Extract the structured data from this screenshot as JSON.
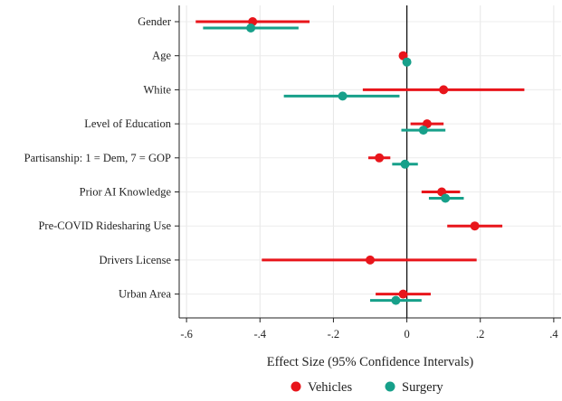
{
  "chart_data": {
    "type": "scatter",
    "title": "",
    "xlabel": "Effect Size (95% Confidence Intervals)",
    "ylabel": "",
    "xlim": [
      -0.62,
      0.42
    ],
    "xticks": [
      -0.6,
      -0.4,
      -0.2,
      0,
      0.2,
      0.4
    ],
    "xtick_labels": [
      "-.6",
      "-.4",
      "-.2",
      "0",
      ".2",
      ".4"
    ],
    "grid": true,
    "reference_line_x": 0,
    "legend_position": "bottom",
    "categories": [
      "Gender",
      "Age",
      "White",
      "Level of Education",
      "Partisanship: 1 = Dem, 7 = GOP",
      "Prior AI Knowledge",
      "Pre-COVID Ridesharing Use",
      "Drivers License",
      "Urban Area"
    ],
    "series": [
      {
        "name": "Vehicles",
        "color": "#e8151b",
        "values": [
          -0.42,
          -0.01,
          0.1,
          0.055,
          -0.075,
          0.095,
          0.185,
          -0.1,
          -0.01
        ],
        "ci_low": [
          -0.575,
          -0.012,
          -0.12,
          0.01,
          -0.105,
          0.04,
          0.11,
          -0.395,
          -0.085
        ],
        "ci_high": [
          -0.265,
          -0.008,
          0.32,
          0.1,
          -0.045,
          0.145,
          0.26,
          0.19,
          0.065
        ]
      },
      {
        "name": "Surgery",
        "color": "#17a08a",
        "values": [
          -0.425,
          0.0,
          -0.175,
          0.045,
          -0.005,
          0.105,
          null,
          null,
          -0.03
        ],
        "ci_low": [
          -0.555,
          -0.002,
          -0.335,
          -0.015,
          -0.04,
          0.06,
          null,
          null,
          -0.1
        ],
        "ci_high": [
          -0.295,
          0.002,
          -0.02,
          0.105,
          0.03,
          0.155,
          null,
          null,
          0.04
        ]
      }
    ]
  }
}
